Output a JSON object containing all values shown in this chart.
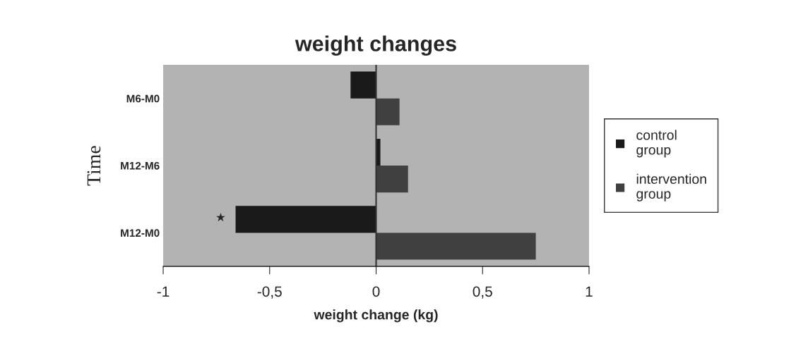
{
  "chart_data": {
    "type": "bar",
    "orientation": "horizontal",
    "title": "weight changes",
    "xlabel": "weight change (kg)",
    "ylabel": "Time",
    "categories": [
      "M6-M0",
      "M12-M6",
      "M12-M0"
    ],
    "series": [
      {
        "name": "control group",
        "color": "#1a1a1a",
        "values": [
          -0.12,
          0.02,
          -0.66
        ]
      },
      {
        "name": "intervention group",
        "color": "#404040",
        "values": [
          0.11,
          0.15,
          0.75
        ]
      }
    ],
    "xlim": [
      -1,
      1
    ],
    "xticks": [
      {
        "value": -1,
        "label": "-1"
      },
      {
        "value": -0.5,
        "label": "-0,5"
      },
      0,
      {
        "value": 0.5,
        "label": "0,5"
      },
      1
    ],
    "annotations": [
      "★"
    ],
    "ref_lines": [
      {
        "axis": "x",
        "value": 0,
        "color": "#333333"
      }
    ],
    "legend": "right"
  }
}
